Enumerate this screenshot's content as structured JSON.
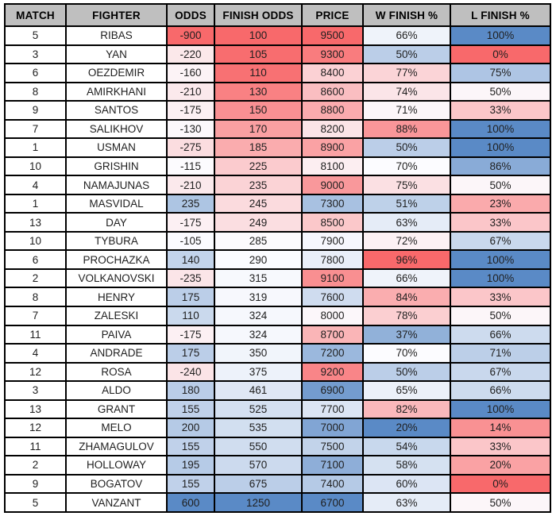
{
  "chart_data": {
    "type": "table",
    "title": "",
    "columns": [
      "MATCH",
      "FIGHTER",
      "ODDS",
      "FINISH ODDS",
      "PRICE",
      "W FINISH %",
      "L FINISH %"
    ],
    "percent_columns": [
      5,
      6
    ],
    "percent_suffix": "%",
    "rows": [
      [
        5,
        "RIBAS",
        -900,
        100,
        9500,
        66,
        100
      ],
      [
        3,
        "YAN",
        -220,
        105,
        9300,
        50,
        0
      ],
      [
        6,
        "OEZDEMIR",
        -160,
        110,
        8400,
        77,
        75
      ],
      [
        8,
        "AMIRKHANI",
        -210,
        130,
        8600,
        74,
        50
      ],
      [
        9,
        "SANTOS",
        -175,
        150,
        8800,
        71,
        33
      ],
      [
        7,
        "SALIKHOV",
        -130,
        170,
        8200,
        88,
        100
      ],
      [
        1,
        "USMAN",
        -275,
        185,
        8900,
        50,
        100
      ],
      [
        10,
        "GRISHIN",
        -115,
        225,
        8100,
        70,
        86
      ],
      [
        4,
        "NAMAJUNAS",
        -210,
        235,
        9000,
        75,
        50
      ],
      [
        1,
        "MASVIDAL",
        235,
        245,
        7300,
        51,
        23
      ],
      [
        13,
        "DAY",
        -175,
        249,
        8500,
        63,
        33
      ],
      [
        10,
        "TYBURA",
        -105,
        285,
        7900,
        72,
        67
      ],
      [
        6,
        "PROCHAZKA",
        140,
        290,
        7800,
        96,
        100
      ],
      [
        2,
        "VOLKANOVSKI",
        -235,
        315,
        9100,
        66,
        100
      ],
      [
        8,
        "HENRY",
        175,
        319,
        7600,
        84,
        33
      ],
      [
        7,
        "ZALESKI",
        110,
        324,
        8000,
        78,
        50
      ],
      [
        11,
        "PAIVA",
        -175,
        324,
        8700,
        37,
        66
      ],
      [
        4,
        "ANDRADE",
        175,
        350,
        7200,
        70,
        71
      ],
      [
        12,
        "ROSA",
        -240,
        375,
        9200,
        50,
        67
      ],
      [
        3,
        "ALDO",
        180,
        461,
        6900,
        65,
        66
      ],
      [
        13,
        "GRANT",
        155,
        525,
        7700,
        82,
        100
      ],
      [
        12,
        "MELO",
        200,
        535,
        7000,
        20,
        14
      ],
      [
        11,
        "ZHAMAGULOV",
        155,
        550,
        7500,
        54,
        33
      ],
      [
        2,
        "HOLLOWAY",
        195,
        570,
        7100,
        58,
        20
      ],
      [
        9,
        "BOGATOV",
        155,
        675,
        7400,
        60,
        0
      ],
      [
        5,
        "VANZANT",
        600,
        1250,
        6700,
        63,
        50
      ]
    ],
    "conditional_formatting": {
      "palette": {
        "red": "#F8696B",
        "mid": "#FCFCFF",
        "blue": "#5A8AC6"
      },
      "scales": [
        null,
        null,
        {
          "direction": "min_red_max_blue",
          "min": -900,
          "mid": -110,
          "max": 600
        },
        {
          "direction": "min_red_max_blue",
          "min": 100,
          "mid": 287,
          "max": 1250
        },
        {
          "direction": "min_blue_max_red",
          "min": 6700,
          "mid": 7950,
          "max": 9500
        },
        {
          "direction": "min_blue_max_red",
          "min": 20,
          "mid": 70,
          "max": 96
        },
        {
          "direction": "min_red_max_blue",
          "min": 0,
          "mid": 52,
          "max": 100
        }
      ]
    },
    "styles": {
      "header_bg": "#BFBFBF",
      "header_text": "#000000",
      "cell_text": "#1f1f1f",
      "border": "#000000",
      "row_bg": "#FFFFFF"
    }
  }
}
